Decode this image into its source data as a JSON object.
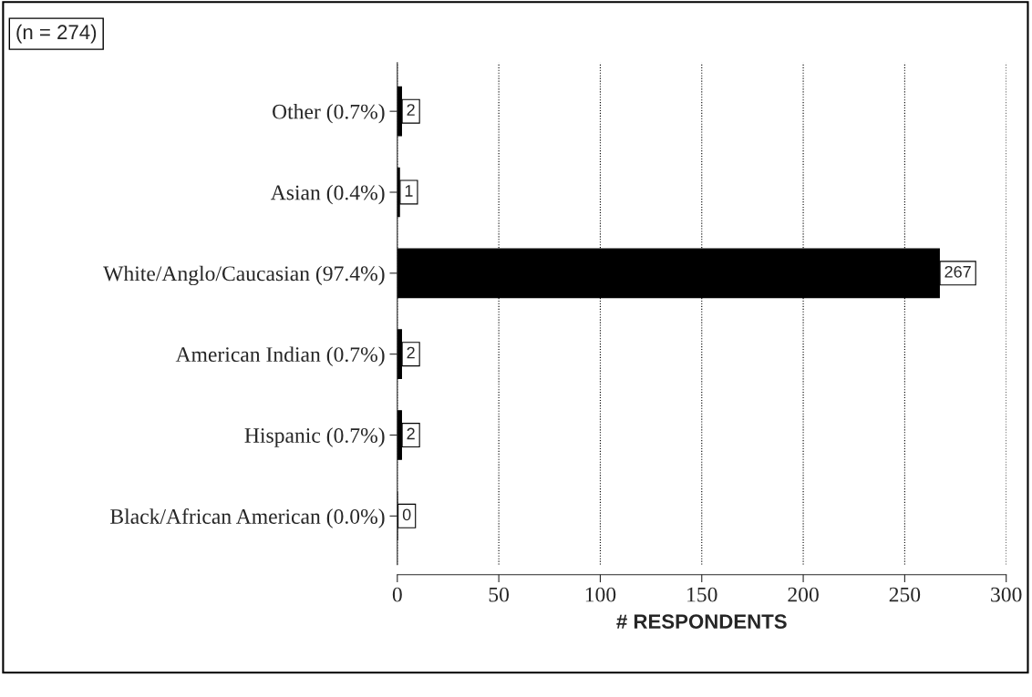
{
  "chart_data": {
    "type": "bar",
    "orientation": "horizontal",
    "categories": [
      "Other (0.7%)",
      "Asian (0.4%)",
      "White/Anglo/Caucasian (97.4%)",
      "American Indian (0.7%)",
      "Hispanic (0.7%)",
      "Black/African American (0.0%)"
    ],
    "values": [
      2,
      1,
      267,
      2,
      2,
      0
    ],
    "color": "#000000",
    "xlim": [
      0,
      300
    ],
    "xticks": [
      0,
      50,
      100,
      150,
      200,
      250,
      300
    ],
    "xlabel": "# RESPONDENTS",
    "annotations": [
      "(n = 274)"
    ],
    "grid": "x",
    "data_labels": true
  }
}
